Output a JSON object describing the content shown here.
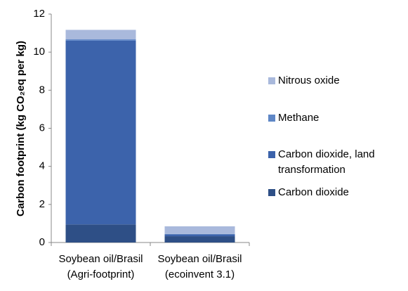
{
  "chart_data": {
    "type": "stacked-bar",
    "y_label": "Carbon footprint (kg CO₂eq per kg)",
    "categories": [
      [
        "Soybean oil/Brasil",
        "(Agri-footprint)"
      ],
      [
        "Soybean oil/Brasil",
        "(ecoinvent 3.1)"
      ]
    ],
    "series": [
      {
        "name": "Carbon dioxide",
        "color": "#2e4f86",
        "values": [
          0.95,
          0.33
        ]
      },
      {
        "name": "Carbon dioxide, land transformation",
        "color": "#3c63ab",
        "values": [
          9.65,
          0.1
        ]
      },
      {
        "name": "Methane",
        "color": "#5f87c6",
        "values": [
          0.07,
          0.02
        ]
      },
      {
        "name": "Nitrous oxide",
        "color": "#a9b9dc",
        "values": [
          0.5,
          0.4
        ]
      }
    ],
    "ylim": [
      0,
      12
    ],
    "yticks": [
      0,
      2,
      4,
      6,
      8,
      10,
      12
    ]
  }
}
